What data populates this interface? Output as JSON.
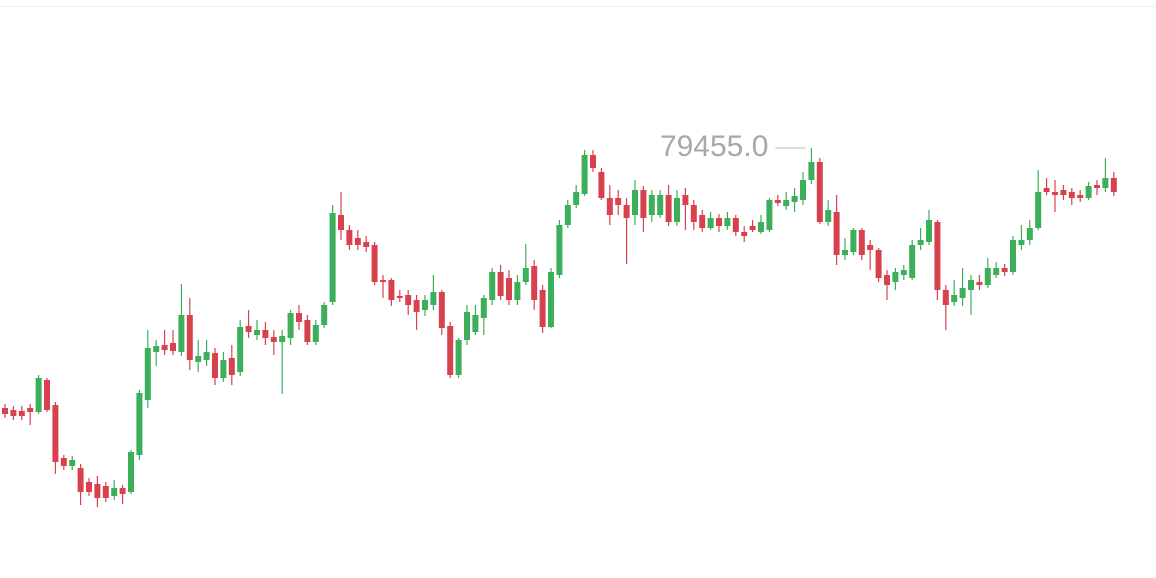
{
  "chart_data": {
    "type": "candlestick",
    "up_color": "#3dae5a",
    "down_color": "#d8424e",
    "ylim": [
      75155,
      80935
    ],
    "annotations": [
      {
        "value": 79455,
        "label": "79455.0"
      }
    ],
    "open": [
      76855,
      76835,
      76825,
      76855,
      76815,
      77135,
      76885,
      76355,
      76275,
      76255,
      76115,
      76095,
      76075,
      75975,
      76055,
      76015,
      76385,
      76935,
      77415,
      77485,
      77505,
      77415,
      77785,
      77315,
      77335,
      77405,
      77155,
      77355,
      77215,
      77675,
      77585,
      77635,
      77565,
      77515,
      77555,
      77805,
      77735,
      77515,
      77685,
      77915,
      78785,
      78635,
      78555,
      78515,
      78485,
      78135,
      78135,
      77975,
      77985,
      77935,
      77835,
      77885,
      78015,
      77675,
      77185,
      77535,
      77615,
      77755,
      77935,
      78215,
      78155,
      77935,
      78115,
      78275,
      78035,
      77665,
      78185,
      78685,
      78885,
      78995,
      79385,
      79215,
      78955,
      78955,
      78885,
      78785,
      79035,
      78785,
      78785,
      78985,
      78715,
      78985,
      78885,
      78785,
      78655,
      78755,
      78675,
      78755,
      78615,
      78675,
      78615,
      78635,
      78935,
      78875,
      78915,
      78935,
      79135,
      79315,
      78715,
      78815,
      78385,
      78415,
      78635,
      78485,
      78435,
      78185,
      78115,
      78185,
      78155,
      78485,
      78515,
      78715,
      78035,
      77915,
      77955,
      78035,
      78115,
      78085,
      78185,
      78255,
      78215,
      78485,
      78535,
      78655,
      79055,
      79015,
      79035,
      79015,
      78985,
      78955,
      79085,
      79055,
      79155
    ],
    "high": [
      76895,
      76875,
      76875,
      76895,
      77185,
      77155,
      76915,
      76385,
      76375,
      76295,
      76155,
      76175,
      76115,
      76135,
      76085,
      76435,
      77035,
      77635,
      77535,
      77635,
      77635,
      78095,
      77955,
      77535,
      77535,
      77455,
      77415,
      77485,
      77735,
      77835,
      77735,
      77715,
      77635,
      77635,
      77835,
      77885,
      77785,
      77735,
      77915,
      78885,
      79015,
      78685,
      78635,
      78575,
      78515,
      78185,
      78155,
      78035,
      78035,
      77985,
      77985,
      78185,
      78035,
      77715,
      77555,
      77885,
      77885,
      77985,
      78255,
      78285,
      78235,
      78185,
      78495,
      78335,
      78085,
      78255,
      78735,
      78935,
      79085,
      79435,
      79435,
      79255,
      79085,
      79035,
      78955,
      79135,
      79075,
      79035,
      79035,
      79085,
      79035,
      79055,
      78935,
      78835,
      78815,
      78795,
      78815,
      78785,
      78675,
      78735,
      78785,
      78955,
      78985,
      79015,
      79055,
      79215,
      79455,
      79355,
      78935,
      78985,
      78555,
      78655,
      78655,
      78535,
      78455,
      78235,
      78255,
      78285,
      78535,
      78655,
      78835,
      78735,
      78085,
      78135,
      78255,
      78185,
      78185,
      78355,
      78315,
      78295,
      78575,
      78685,
      78735,
      79235,
      79155,
      79135,
      79085,
      79055,
      79035,
      79115,
      79135,
      79355,
      79215
    ],
    "low": [
      76755,
      76735,
      76735,
      76685,
      76795,
      76815,
      76195,
      76235,
      76235,
      75885,
      75975,
      75865,
      75915,
      75935,
      75895,
      75995,
      76335,
      76855,
      77275,
      77385,
      77385,
      77375,
      77235,
      77215,
      77275,
      77085,
      77115,
      77085,
      77175,
      77555,
      77535,
      77485,
      77385,
      76995,
      77485,
      77635,
      77485,
      77485,
      77655,
      77885,
      78535,
      78435,
      78435,
      78415,
      78085,
      77955,
      77875,
      77915,
      77785,
      77635,
      77775,
      77835,
      77585,
      77155,
      77155,
      77485,
      77585,
      77585,
      77885,
      77935,
      77885,
      77885,
      78085,
      77835,
      77605,
      77655,
      78155,
      78655,
      78855,
      78975,
      79215,
      78935,
      78685,
      78785,
      78295,
      78685,
      78615,
      78715,
      78755,
      78675,
      78675,
      78635,
      78635,
      78615,
      78635,
      78615,
      78635,
      78575,
      78515,
      78615,
      78595,
      78615,
      78875,
      78835,
      78815,
      78885,
      79095,
      78695,
      78675,
      78285,
      78335,
      78385,
      78335,
      78235,
      78115,
      77935,
      78035,
      78135,
      78135,
      78435,
      78485,
      77935,
      77635,
      77875,
      77875,
      77785,
      78035,
      78055,
      78155,
      78175,
      78185,
      78435,
      78485,
      78635,
      78985,
      78815,
      78935,
      78885,
      78915,
      78935,
      78985,
      79015,
      78975
    ],
    "close": [
      76795,
      76775,
      76775,
      76815,
      77155,
      76835,
      76315,
      76275,
      76335,
      76015,
      76015,
      75955,
      75955,
      76055,
      75995,
      76415,
      77005,
      77455,
      77475,
      77435,
      77425,
      77785,
      77335,
      77375,
      77415,
      77155,
      77335,
      77185,
      77665,
      77615,
      77635,
      77555,
      77515,
      77575,
      77805,
      77715,
      77515,
      77685,
      77885,
      78805,
      78635,
      78485,
      78485,
      78465,
      78115,
      78115,
      77935,
      77955,
      77885,
      77815,
      77935,
      78015,
      77655,
      77185,
      77535,
      77815,
      77785,
      77955,
      78215,
      77975,
      77935,
      78115,
      78255,
      77935,
      77665,
      78215,
      78685,
      78885,
      79015,
      79385,
      79255,
      78955,
      78785,
      78885,
      78755,
      79035,
      78755,
      78985,
      78985,
      78715,
      78955,
      78885,
      78715,
      78655,
      78755,
      78675,
      78755,
      78615,
      78575,
      78635,
      78715,
      78935,
      78905,
      78935,
      78975,
      79135,
      79315,
      78715,
      78835,
      78385,
      78435,
      78635,
      78385,
      78435,
      78155,
      78085,
      78215,
      78235,
      78485,
      78535,
      78735,
      78035,
      77885,
      77985,
      78055,
      78135,
      78085,
      78255,
      78255,
      78215,
      78535,
      78535,
      78655,
      79015,
      79015,
      78985,
      78985,
      78955,
      78955,
      79075,
      79055,
      79155,
      79015
    ]
  }
}
